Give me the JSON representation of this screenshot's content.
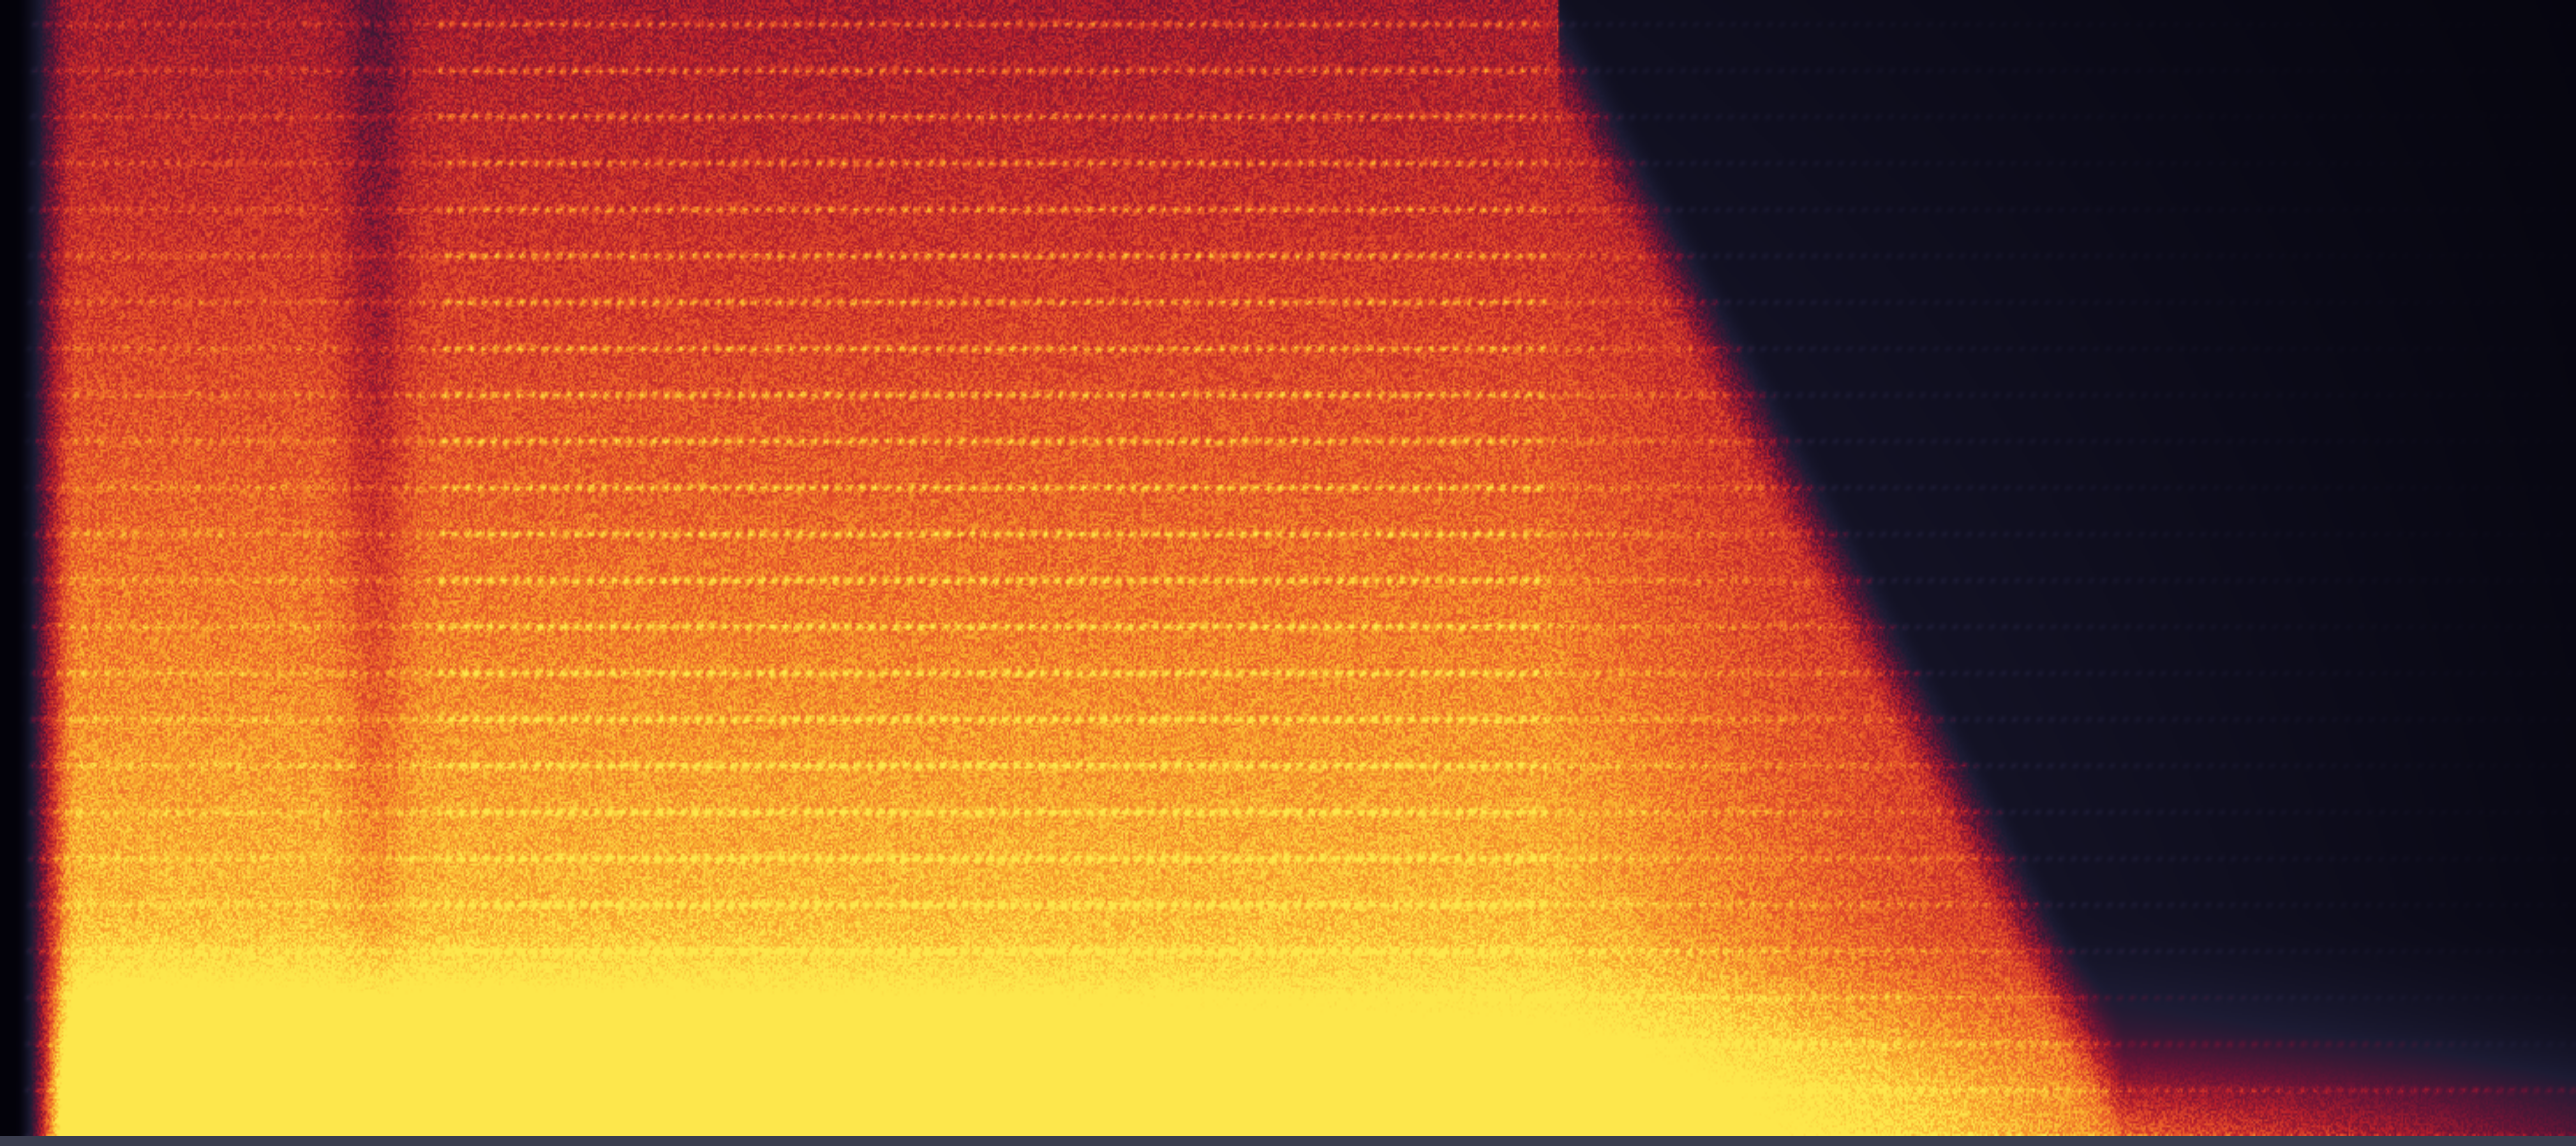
{
  "chart_data": {
    "type": "heatmap",
    "title": "",
    "xlabel": "",
    "ylabel": "",
    "grid": false,
    "legend": "none",
    "colormap": [
      "#03020a",
      "#1c1b33",
      "#6a1436",
      "#b81f2c",
      "#e8542a",
      "#f9a62c",
      "#fde74c"
    ]
  }
}
